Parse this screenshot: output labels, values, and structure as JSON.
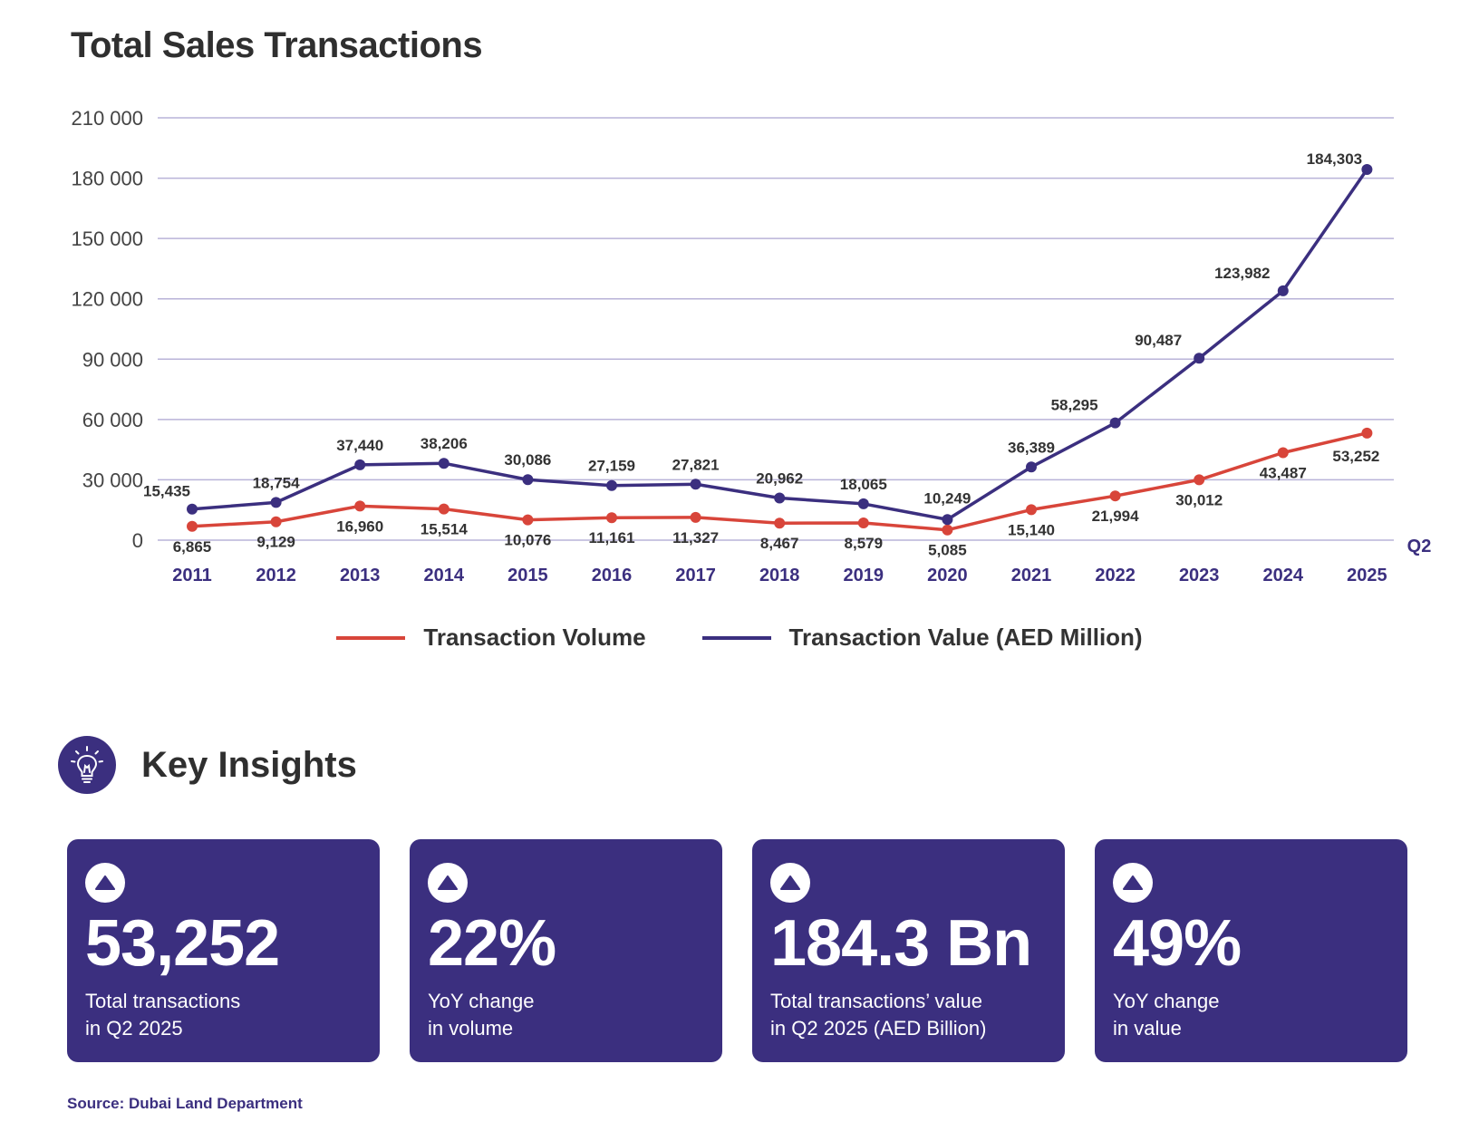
{
  "title": "Total Sales Transactions",
  "chart_data": {
    "type": "line",
    "title": "Total Sales Transactions",
    "categories": [
      "2011",
      "2012",
      "2013",
      "2014",
      "2015",
      "2016",
      "2017",
      "2018",
      "2019",
      "2020",
      "2021",
      "2022",
      "2023",
      "2024",
      "2025"
    ],
    "period_label": "Q2",
    "yticks": [
      "0",
      "30 000",
      "60 000",
      "90 000",
      "120 000",
      "150 000",
      "180 000",
      "210 000"
    ],
    "ylim": [
      0,
      210000
    ],
    "grid": true,
    "legend_position": "bottom",
    "series": [
      {
        "name": "Transaction Volume",
        "color": "#d8453a",
        "values": [
          6865,
          9129,
          16960,
          15514,
          10076,
          11161,
          11327,
          8467,
          8579,
          5085,
          15140,
          21994,
          30012,
          43487,
          53252
        ],
        "labels": [
          "6,865",
          "9,129",
          "16,960",
          "15,514",
          "10,076",
          "11,161",
          "11,327",
          "8,467",
          "8,579",
          "5,085",
          "15,140",
          "21,994",
          "30,012",
          "43,487",
          "53,252"
        ]
      },
      {
        "name": "Transaction Value (AED Million)",
        "color": "#3b2f7f",
        "values": [
          15435,
          18754,
          37440,
          38206,
          30086,
          27159,
          27821,
          20962,
          18065,
          10249,
          36389,
          58295,
          90487,
          123982,
          184303
        ],
        "labels": [
          "15,435",
          "18,754",
          "37,440",
          "38,206",
          "30,086",
          "27,159",
          "27,821",
          "20,962",
          "18,065",
          "10,249",
          "36,389",
          "58,295",
          "90,487",
          "123,982",
          "184,303"
        ]
      }
    ]
  },
  "insights": {
    "title": "Key Insights",
    "icon": "lightbulb-icon",
    "cards": [
      {
        "value": "53,252",
        "label": "Total transactions\nin Q2 2025"
      },
      {
        "value": "22%",
        "label": "YoY change\nin volume"
      },
      {
        "value": "184.3 Bn",
        "label": "Total transactions’ value\n in Q2 2025 (AED Billion)"
      },
      {
        "value": "49%",
        "label": "YoY change\nin value"
      }
    ]
  },
  "source": "Source: Dubai Land Department"
}
